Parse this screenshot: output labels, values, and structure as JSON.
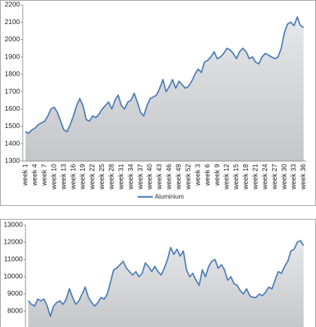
{
  "chart_data": [
    {
      "type": "line",
      "categories": [
        "week 1",
        null,
        null,
        "week 4",
        null,
        null,
        "week 7",
        null,
        null,
        "week 10",
        null,
        null,
        "week 13",
        null,
        null,
        "week 16",
        null,
        null,
        "week 19",
        null,
        null,
        "week 22",
        null,
        null,
        "week 25",
        null,
        null,
        "week 28",
        null,
        null,
        "week 31",
        null,
        null,
        "week 34",
        null,
        null,
        "week 37",
        null,
        null,
        "week 40",
        null,
        null,
        "week 43",
        null,
        null,
        "week 46",
        null,
        null,
        "week 49",
        null,
        null,
        "week 52",
        null,
        null,
        "week 3",
        null,
        null,
        "week 6",
        null,
        null,
        "week 9",
        null,
        null,
        "week 12",
        null,
        null,
        "week 15",
        null,
        null,
        "week 18",
        null,
        null,
        "week 21",
        null,
        null,
        "week 24",
        null,
        null,
        "week 27",
        null,
        null,
        "week 30",
        null,
        null,
        "week 33",
        null,
        null,
        "week 36"
      ],
      "series": [
        {
          "name": "Aluminium",
          "color": "#4f7fb8",
          "values": [
            1470,
            1460,
            1480,
            1490,
            1510,
            1520,
            1530,
            1560,
            1600,
            1610,
            1580,
            1530,
            1480,
            1470,
            1510,
            1560,
            1620,
            1660,
            1620,
            1540,
            1530,
            1560,
            1550,
            1570,
            1600,
            1620,
            1640,
            1600,
            1650,
            1680,
            1620,
            1600,
            1640,
            1650,
            1690,
            1640,
            1580,
            1560,
            1620,
            1660,
            1670,
            1680,
            1720,
            1770,
            1700,
            1730,
            1770,
            1720,
            1760,
            1740,
            1720,
            1730,
            1760,
            1800,
            1830,
            1810,
            1870,
            1880,
            1900,
            1930,
            1890,
            1900,
            1920,
            1950,
            1940,
            1920,
            1890,
            1930,
            1950,
            1930,
            1890,
            1900,
            1870,
            1860,
            1900,
            1920,
            1910,
            1900,
            1890,
            1900,
            1950,
            2040,
            2090,
            2100,
            2080,
            2130,
            2080,
            2070
          ]
        }
      ],
      "ylim": [
        1300,
        2200
      ],
      "yticks": [
        1300,
        1400,
        1500,
        1600,
        1700,
        1800,
        1900,
        2000,
        2100,
        2200
      ],
      "legend": "bottom"
    },
    {
      "type": "line",
      "series": [
        {
          "color": "#4f7fb8",
          "values": [
            8600,
            8400,
            8300,
            8700,
            8600,
            8700,
            8300,
            7700,
            8300,
            8500,
            8600,
            8400,
            8700,
            9300,
            8800,
            8400,
            8600,
            9000,
            9400,
            8800,
            8500,
            8300,
            8500,
            8800,
            8700,
            9000,
            9700,
            10400,
            10500,
            10700,
            10900,
            10500,
            10300,
            10100,
            10300,
            10000,
            10200,
            10800,
            10600,
            10300,
            10600,
            10300,
            10100,
            10500,
            11000,
            11700,
            11300,
            11600,
            11200,
            11500,
            10400,
            10000,
            10200,
            9800,
            9500,
            10400,
            10000,
            10600,
            10900,
            11000,
            10500,
            10700,
            10400,
            9800,
            10000,
            9600,
            9500,
            9200,
            9000,
            9300,
            8900,
            8800,
            8800,
            9000,
            8900,
            9100,
            9400,
            9300,
            9800,
            10300,
            10200,
            10600,
            10900,
            11500,
            11600,
            12000,
            12100,
            11800
          ]
        }
      ],
      "ylim": [
        7000,
        13000
      ],
      "yticks": [
        8000,
        9000,
        10000,
        11000,
        12000,
        13000
      ]
    }
  ]
}
